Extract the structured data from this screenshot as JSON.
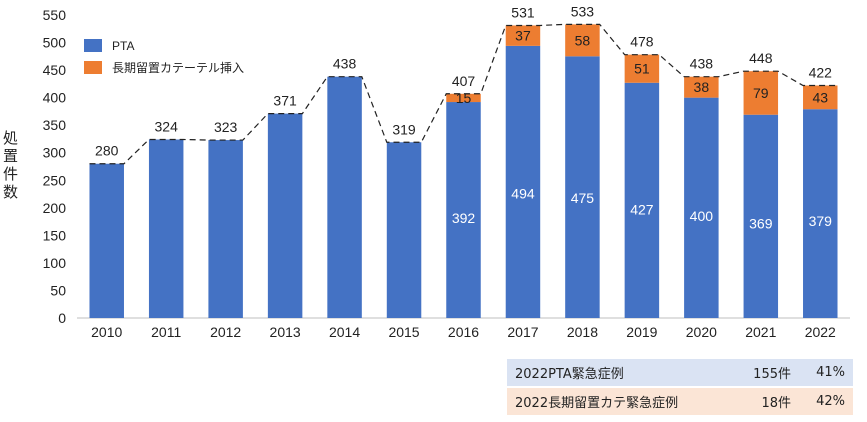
{
  "chart_data": {
    "type": "bar",
    "stacked": true,
    "categories": [
      "2010",
      "2011",
      "2012",
      "2013",
      "2014",
      "2015",
      "2016",
      "2017",
      "2018",
      "2019",
      "2020",
      "2021",
      "2022"
    ],
    "series": [
      {
        "name": "PTA",
        "color": "#4472c4",
        "values": [
          280,
          324,
          323,
          371,
          438,
          319,
          392,
          494,
          475,
          427,
          400,
          369,
          379
        ],
        "labels": [
          "",
          "",
          "",
          "",
          "",
          "",
          "392",
          "494",
          "475",
          "427",
          "400",
          "369",
          "379"
        ]
      },
      {
        "name": "長期留置カテーテル挿入",
        "color": "#ed7d31",
        "values": [
          0,
          0,
          0,
          0,
          0,
          0,
          15,
          37,
          58,
          51,
          38,
          79,
          43
        ],
        "labels": [
          "",
          "",
          "",
          "",
          "",
          "",
          "15",
          "37",
          "58",
          "51",
          "38",
          "79",
          "43"
        ]
      }
    ],
    "totals": [
      280,
      324,
      323,
      371,
      438,
      319,
      407,
      531,
      533,
      478,
      438,
      448,
      422
    ],
    "ylabel": "処置件数",
    "ylim": [
      0,
      550
    ],
    "yticks": [
      0,
      50,
      100,
      150,
      200,
      250,
      300,
      350,
      400,
      450,
      500,
      550
    ],
    "legend_position": "top-left",
    "total_line_style": "dashed",
    "grid": false
  },
  "summary_table": [
    {
      "label": "2022PTA緊急症例",
      "count": "155件",
      "percent": "41%"
    },
    {
      "label": "2022長期留置カテ緊急症例",
      "count": "18件",
      "percent": "42%"
    }
  ]
}
